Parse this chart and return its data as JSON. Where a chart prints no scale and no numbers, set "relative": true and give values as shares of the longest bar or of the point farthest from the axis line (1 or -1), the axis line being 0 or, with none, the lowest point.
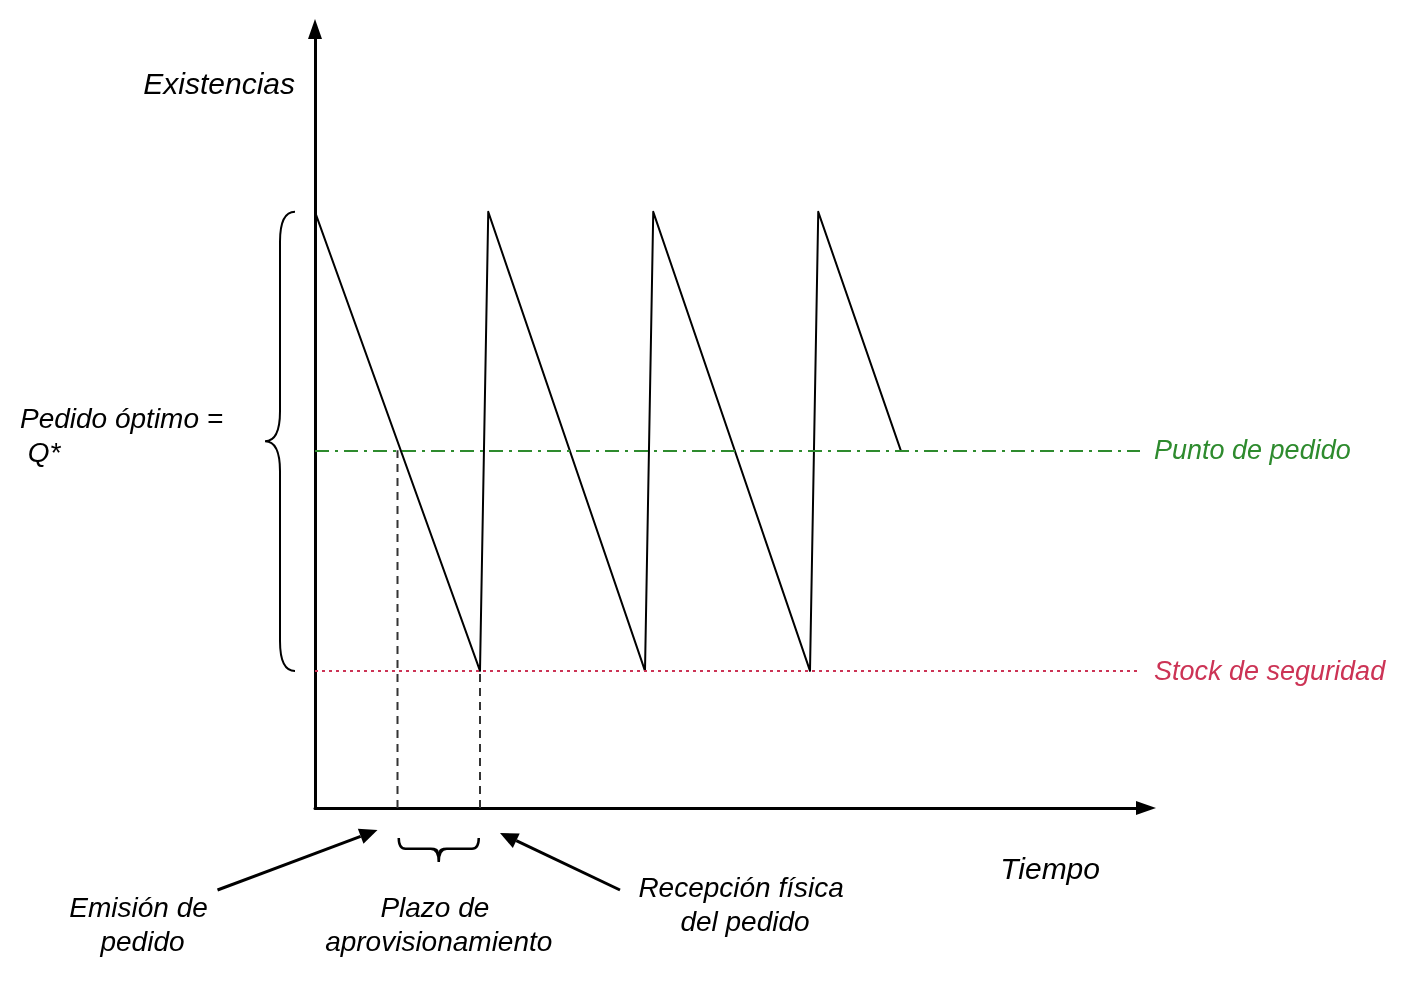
{
  "chart_data": {
    "type": "line",
    "relative": true,
    "xlabel": "Tiempo",
    "ylabel": "Existencias",
    "categories": [
      null,
      null,
      null,
      null,
      null,
      null,
      null,
      null,
      null,
      null,
      null,
      null,
      null,
      null,
      null,
      null,
      null,
      null,
      null,
      null,
      null,
      null,
      null,
      null,
      null,
      null,
      null,
      null,
      null,
      null,
      null,
      null,
      null,
      null,
      null,
      null,
      null,
      null,
      null,
      null,
      null,
      null,
      null,
      null,
      null,
      null,
      null,
      null,
      null,
      null,
      null,
      null,
      null,
      null,
      null,
      null,
      null,
      null,
      null,
      null,
      null,
      null,
      null,
      null,
      null,
      null,
      null,
      null,
      null,
      null,
      null,
      null,
      null,
      null,
      null,
      null,
      null,
      null,
      null,
      null,
      null,
      null,
      null,
      null,
      null,
      null,
      null,
      null,
      null,
      null,
      null,
      null,
      null,
      null,
      null,
      null,
      null,
      null,
      null,
      null,
      null
    ],
    "series": [
      {
        "color": "#000000",
        "values": [
          1,
          null,
          null,
          null,
          null,
          null,
          null,
          null,
          null,
          null,
          null,
          null,
          null,
          null,
          null,
          null,
          null,
          null,
          null,
          null,
          0.23,
          1,
          null,
          null,
          null,
          null,
          null,
          null,
          null,
          null,
          null,
          null,
          null,
          null,
          null,
          null,
          null,
          null,
          null,
          null,
          0.23,
          1,
          null,
          null,
          null,
          null,
          null,
          null,
          null,
          null,
          null,
          null,
          null,
          null,
          null,
          null,
          null,
          null,
          null,
          null,
          0.23,
          1,
          null,
          null,
          null,
          null,
          null,
          null,
          null,
          null,
          null,
          0.6,
          null,
          null,
          null,
          null,
          null,
          null,
          null,
          null,
          null,
          null,
          null,
          null,
          null,
          null,
          null,
          null,
          null,
          null,
          null,
          null,
          null,
          null,
          null,
          null,
          null,
          null,
          null,
          null,
          null
        ]
      }
    ],
    "ref_lines": [
      {
        "axis": "y",
        "value": 0.6,
        "label": "Punto de pedido",
        "color": "#2e8b2e",
        "line_style": "dashdot"
      },
      {
        "axis": "y",
        "value": 0.23,
        "label": "Stock de seguridad",
        "color": "#cc3355",
        "line_style": "dotted"
      }
    ],
    "annotations": [
      "Pedido óptimo = Q*",
      "Emisión de pedido",
      "Plazo de aprovisionamiento",
      "Recepción física del pedido"
    ],
    "marker": "none",
    "line_style": "solid",
    "grid": false
  }
}
